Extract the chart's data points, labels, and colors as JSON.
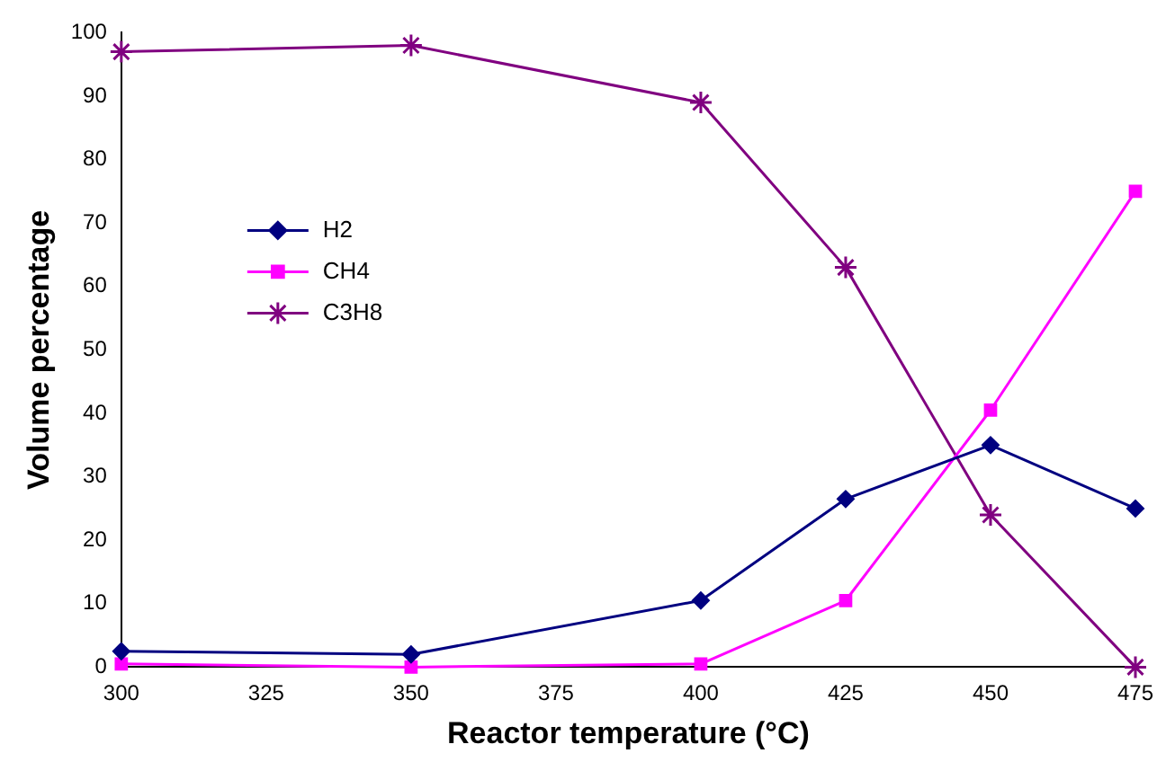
{
  "chart_data": {
    "type": "line",
    "xlabel": "Reactor temperature (°C)",
    "ylabel": "Volume percentage",
    "x": [
      300,
      350,
      400,
      425,
      450,
      475
    ],
    "series": [
      {
        "name": "H2",
        "color": "#000080",
        "marker": "diamond",
        "values": [
          2.5,
          2,
          10.5,
          26.5,
          35,
          25
        ]
      },
      {
        "name": "CH4",
        "color": "#ff00ff",
        "marker": "square",
        "values": [
          0.5,
          0,
          0.5,
          10.5,
          40.5,
          75
        ]
      },
      {
        "name": "C3H8",
        "color": "#800080",
        "marker": "cross",
        "values": [
          97,
          98,
          89,
          63,
          24,
          0
        ]
      }
    ],
    "xlim": [
      300,
      475
    ],
    "xticks": [
      300,
      325,
      350,
      375,
      400,
      425,
      450,
      475
    ],
    "ylim": [
      0,
      100
    ],
    "yticks": [
      0,
      10,
      20,
      30,
      40,
      50,
      60,
      70,
      80,
      90,
      100
    ],
    "grid": false,
    "legend": "top left",
    "line_style": "solid"
  }
}
